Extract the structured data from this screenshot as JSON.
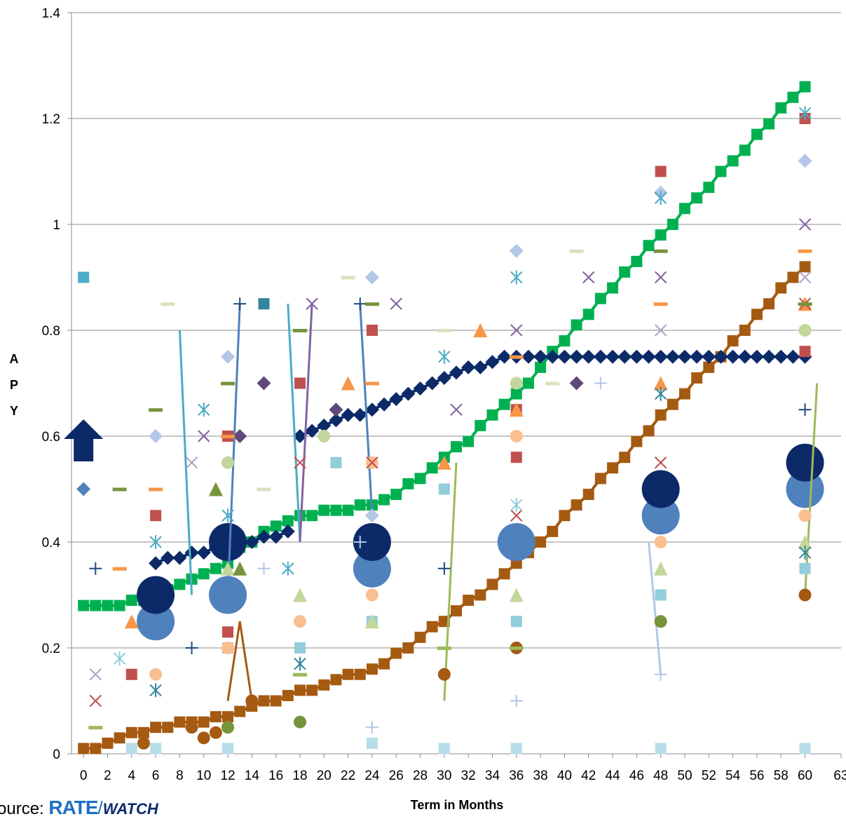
{
  "chart_data": {
    "type": "scatter",
    "title": "",
    "xlabel": "Term in Months",
    "ylabel": "APY",
    "ylabel_letters": [
      "A",
      "P",
      "Y"
    ],
    "xlim": [
      -1,
      63
    ],
    "ylim": [
      0,
      1.4
    ],
    "x_ticks": [
      "0",
      "2",
      "4",
      "6",
      "8",
      "10",
      "12",
      "14",
      "16",
      "18",
      "20",
      "22",
      "24",
      "26",
      "28",
      "30",
      "32",
      "34",
      "36",
      "38",
      "40",
      "42",
      "44",
      "46",
      "48",
      "50",
      "52",
      "54",
      "56",
      "58",
      "60",
      "63"
    ],
    "x_tick_values": [
      0,
      2,
      4,
      6,
      8,
      10,
      12,
      14,
      16,
      18,
      20,
      22,
      24,
      26,
      28,
      30,
      32,
      34,
      36,
      38,
      40,
      42,
      44,
      46,
      48,
      50,
      52,
      54,
      56,
      58,
      60,
      63
    ],
    "y_ticks": [
      "0",
      "0.2",
      "0.4",
      "0.6",
      "0.8",
      "1",
      "1.2",
      "1.4"
    ],
    "y_tick_values": [
      0,
      0.2,
      0.4,
      0.6,
      0.8,
      1.0,
      1.2,
      1.4
    ],
    "grid": "horizontal",
    "series": [
      {
        "marker": "square",
        "color": "#00b050",
        "line": true,
        "x": [
          0,
          1,
          2,
          3,
          4,
          5,
          6,
          7,
          8,
          9,
          10,
          11,
          12,
          13,
          14,
          15,
          16,
          17,
          18,
          19,
          20,
          21,
          22,
          23,
          24,
          25,
          26,
          27,
          28,
          29,
          30,
          31,
          32,
          33,
          34,
          35,
          36,
          37,
          38,
          39,
          40,
          41,
          42,
          43,
          44,
          45,
          46,
          47,
          48,
          49,
          50,
          51,
          52,
          53,
          54,
          55,
          56,
          57,
          58,
          59,
          60
        ],
        "y": [
          0.28,
          0.28,
          0.28,
          0.28,
          0.29,
          0.29,
          0.3,
          0.31,
          0.32,
          0.33,
          0.34,
          0.35,
          0.36,
          0.39,
          0.4,
          0.42,
          0.43,
          0.44,
          0.45,
          0.45,
          0.46,
          0.46,
          0.46,
          0.47,
          0.47,
          0.48,
          0.49,
          0.51,
          0.52,
          0.54,
          0.56,
          0.58,
          0.59,
          0.62,
          0.64,
          0.66,
          0.68,
          0.7,
          0.73,
          0.76,
          0.78,
          0.81,
          0.83,
          0.86,
          0.88,
          0.91,
          0.93,
          0.96,
          0.98,
          1.0,
          1.03,
          1.05,
          1.07,
          1.1,
          1.12,
          1.14,
          1.17,
          1.19,
          1.22,
          1.24,
          1.26
        ]
      },
      {
        "marker": "square",
        "color": "#a55a11",
        "line": true,
        "x": [
          0,
          1,
          2,
          3,
          4,
          5,
          6,
          7,
          8,
          9,
          10,
          11,
          12,
          13,
          14,
          15,
          16,
          17,
          18,
          19,
          20,
          21,
          22,
          23,
          24,
          25,
          26,
          27,
          28,
          29,
          30,
          31,
          32,
          33,
          34,
          35,
          36,
          37,
          38,
          39,
          40,
          41,
          42,
          43,
          44,
          45,
          46,
          47,
          48,
          49,
          50,
          51,
          52,
          53,
          54,
          55,
          56,
          57,
          58,
          59,
          60
        ],
        "y": [
          0.01,
          0.01,
          0.02,
          0.03,
          0.04,
          0.04,
          0.05,
          0.05,
          0.06,
          0.06,
          0.06,
          0.07,
          0.07,
          0.08,
          0.09,
          0.1,
          0.1,
          0.11,
          0.12,
          0.12,
          0.13,
          0.14,
          0.15,
          0.15,
          0.16,
          0.17,
          0.19,
          0.2,
          0.22,
          0.24,
          0.25,
          0.27,
          0.29,
          0.3,
          0.32,
          0.34,
          0.36,
          0.38,
          0.4,
          0.42,
          0.45,
          0.47,
          0.49,
          0.52,
          0.54,
          0.56,
          0.59,
          0.61,
          0.64,
          0.66,
          0.68,
          0.71,
          0.73,
          0.75,
          0.78,
          0.8,
          0.83,
          0.85,
          0.88,
          0.9,
          0.92
        ]
      },
      {
        "marker": "diamond",
        "color": "#0d2a68",
        "line": true,
        "x": [
          6,
          7,
          8,
          9,
          10,
          11,
          12,
          13,
          14,
          15,
          16,
          17
        ],
        "y": [
          0.36,
          0.37,
          0.37,
          0.38,
          0.38,
          0.39,
          0.39,
          0.4,
          0.4,
          0.41,
          0.41,
          0.42
        ]
      },
      {
        "marker": "diamond",
        "color": "#0d2a68",
        "line": true,
        "x": [
          18,
          19,
          20,
          21,
          22,
          23,
          24,
          25,
          26,
          27,
          28,
          29,
          30,
          31,
          32,
          33,
          34,
          35,
          36,
          37,
          38,
          39,
          40,
          41,
          42,
          43,
          44,
          45,
          46,
          47,
          48,
          49,
          50,
          51,
          52,
          53,
          54,
          55,
          56,
          57,
          58,
          59,
          60
        ],
        "y": [
          0.6,
          0.61,
          0.62,
          0.63,
          0.64,
          0.64,
          0.65,
          0.66,
          0.67,
          0.68,
          0.69,
          0.7,
          0.71,
          0.72,
          0.73,
          0.73,
          0.74,
          0.75,
          0.75,
          0.75,
          0.75,
          0.75,
          0.75,
          0.75,
          0.75,
          0.75,
          0.75,
          0.75,
          0.75,
          0.75,
          0.75,
          0.75,
          0.75,
          0.75,
          0.75,
          0.75,
          0.75,
          0.75,
          0.75,
          0.75,
          0.75,
          0.75,
          0.75
        ]
      },
      {
        "marker": "circle-large",
        "color": "#4f81bd",
        "x": [
          6,
          12,
          24,
          36,
          48,
          60
        ],
        "y": [
          0.25,
          0.3,
          0.35,
          0.4,
          0.45,
          0.5
        ]
      },
      {
        "marker": "circle-large",
        "color": "#0d2a68",
        "x": [
          6,
          12,
          24,
          48,
          60
        ],
        "y": [
          0.3,
          0.4,
          0.4,
          0.5,
          0.55
        ]
      },
      {
        "marker": "arrow-up",
        "color": "#0d2a68",
        "x": [
          0
        ],
        "y": [
          0.6
        ]
      },
      {
        "marker": "square",
        "color": "#4bacc6",
        "x": [
          0
        ],
        "y": [
          0.9
        ]
      },
      {
        "marker": "diamond",
        "color": "#4f81bd",
        "x": [
          0
        ],
        "y": [
          0.5
        ]
      },
      {
        "marker": "line-segment",
        "color": "#4bacc6",
        "line": true,
        "x": [
          8,
          9
        ],
        "y": [
          0.8,
          0.3
        ]
      },
      {
        "marker": "line-segment",
        "color": "#4bacc6",
        "line": true,
        "x": [
          17,
          18
        ],
        "y": [
          0.85,
          0.4
        ]
      },
      {
        "marker": "line-segment",
        "color": "#4f81bd",
        "line": true,
        "x": [
          12,
          13
        ],
        "y": [
          0.3,
          0.85
        ]
      },
      {
        "marker": "line-segment",
        "color": "#4f81bd",
        "line": true,
        "x": [
          23,
          24
        ],
        "y": [
          0.85,
          0.45
        ]
      },
      {
        "marker": "line-segment",
        "color": "#8064a2",
        "line": true,
        "x": [
          18,
          19
        ],
        "y": [
          0.4,
          0.85
        ]
      },
      {
        "marker": "line-segment",
        "color": "#9bbb59",
        "line": true,
        "x": [
          30,
          31
        ],
        "y": [
          0.1,
          0.55
        ]
      },
      {
        "marker": "line-segment",
        "color": "#9bbb59",
        "line": true,
        "x": [
          60,
          61
        ],
        "y": [
          0.3,
          0.7
        ]
      },
      {
        "marker": "line-segment",
        "color": "#a55a11",
        "line": true,
        "x": [
          12,
          13,
          14
        ],
        "y": [
          0.1,
          0.25,
          0.1
        ]
      },
      {
        "marker": "line-segment",
        "color": "#b4c6e7",
        "line": true,
        "x": [
          47,
          48
        ],
        "y": [
          0.4,
          0.15
        ]
      },
      {
        "marker": "square",
        "color": "#c0504d",
        "x": [
          6,
          12,
          18,
          24,
          36,
          48,
          60,
          4,
          12,
          36,
          60
        ],
        "y": [
          0.45,
          0.6,
          0.7,
          0.8,
          0.56,
          1.1,
          1.2,
          0.15,
          0.23,
          0.65,
          0.76
        ]
      },
      {
        "marker": "square",
        "color": "#92cddc",
        "x": [
          21,
          24,
          30,
          36,
          48,
          60,
          12,
          18
        ],
        "y": [
          0.55,
          0.25,
          0.5,
          0.25,
          0.3,
          0.35,
          0.2,
          0.2
        ]
      },
      {
        "marker": "square",
        "color": "#b7dde8",
        "x": [
          4,
          6,
          12,
          24,
          30,
          36,
          48,
          60
        ],
        "y": [
          0.01,
          0.01,
          0.01,
          0.02,
          0.01,
          0.01,
          0.01,
          0.01
        ]
      },
      {
        "marker": "square",
        "color": "#31859c",
        "x": [
          15
        ],
        "y": [
          0.85
        ]
      },
      {
        "marker": "triangle",
        "color": "#f79646",
        "x": [
          4,
          22,
          30,
          33,
          36,
          48,
          60
        ],
        "y": [
          0.25,
          0.7,
          0.55,
          0.8,
          0.65,
          0.7,
          0.85
        ]
      },
      {
        "marker": "triangle",
        "color": "#c4d79b",
        "x": [
          12,
          24,
          36,
          48,
          60,
          18
        ],
        "y": [
          0.35,
          0.25,
          0.3,
          0.35,
          0.4,
          0.3
        ]
      },
      {
        "marker": "triangle",
        "color": "#77933c",
        "x": [
          11,
          13
        ],
        "y": [
          0.5,
          0.35
        ]
      },
      {
        "marker": "circle",
        "color": "#fabf8f",
        "x": [
          6,
          12,
          18,
          24,
          36,
          48,
          60,
          24
        ],
        "y": [
          0.15,
          0.2,
          0.25,
          0.3,
          0.6,
          0.4,
          0.45,
          0.55
        ]
      },
      {
        "marker": "circle",
        "color": "#a55a11",
        "x": [
          5,
          9,
          10,
          11,
          14,
          30,
          36,
          60
        ],
        "y": [
          0.02,
          0.05,
          0.03,
          0.04,
          0.1,
          0.15,
          0.2,
          0.3
        ]
      },
      {
        "marker": "circle",
        "color": "#77933c",
        "x": [
          18,
          48,
          12
        ],
        "y": [
          0.06,
          0.25,
          0.05
        ]
      },
      {
        "marker": "circle",
        "color": "#c3d69b",
        "x": [
          12,
          20,
          36,
          60
        ],
        "y": [
          0.55,
          0.6,
          0.7,
          0.8
        ]
      },
      {
        "marker": "diamond",
        "color": "#b4c6e7",
        "x": [
          6,
          12,
          24,
          36,
          48,
          60,
          24
        ],
        "y": [
          0.6,
          0.75,
          0.9,
          0.95,
          1.06,
          1.12,
          0.45
        ]
      },
      {
        "marker": "diamond",
        "color": "#60497a",
        "x": [
          15,
          21,
          41,
          13
        ],
        "y": [
          0.7,
          0.65,
          0.7,
          0.6
        ]
      },
      {
        "marker": "x",
        "color": "#8064a2",
        "x": [
          10,
          19,
          26,
          31,
          36,
          42,
          48,
          60
        ],
        "y": [
          0.6,
          0.85,
          0.85,
          0.65,
          0.8,
          0.9,
          0.9,
          1.0
        ]
      },
      {
        "marker": "x",
        "color": "#c0504d",
        "x": [
          1,
          18,
          24,
          36,
          48,
          60
        ],
        "y": [
          0.1,
          0.55,
          0.55,
          0.45,
          0.55,
          0.85
        ]
      },
      {
        "marker": "x",
        "color": "#b1a0c7",
        "x": [
          1,
          9,
          48,
          60
        ],
        "y": [
          0.15,
          0.55,
          0.8,
          0.9
        ]
      },
      {
        "marker": "star",
        "color": "#4bacc6",
        "x": [
          6,
          10,
          12,
          17,
          30,
          36,
          48,
          60
        ],
        "y": [
          0.4,
          0.65,
          0.45,
          0.35,
          0.75,
          0.9,
          1.05,
          1.21
        ]
      },
      {
        "marker": "star",
        "color": "#31859c",
        "x": [
          6,
          18,
          48,
          60
        ],
        "y": [
          0.12,
          0.17,
          0.68,
          0.38
        ]
      },
      {
        "marker": "star",
        "color": "#93cddd",
        "x": [
          3,
          36
        ],
        "y": [
          0.18,
          0.47
        ]
      },
      {
        "marker": "plus",
        "color": "#1f497d",
        "x": [
          1,
          9,
          13,
          23,
          30,
          60
        ],
        "y": [
          0.35,
          0.2,
          0.85,
          0.85,
          0.35,
          0.65
        ]
      },
      {
        "marker": "plus",
        "color": "#b4c6e7",
        "x": [
          15,
          23,
          24,
          36,
          43,
          48
        ],
        "y": [
          0.35,
          0.4,
          0.05,
          0.1,
          0.7,
          0.15
        ]
      },
      {
        "marker": "dash",
        "color": "#f79646",
        "x": [
          3,
          6,
          12,
          24,
          36,
          48,
          60
        ],
        "y": [
          0.35,
          0.5,
          0.6,
          0.7,
          0.75,
          0.85,
          0.95
        ]
      },
      {
        "marker": "dash",
        "color": "#77933c",
        "x": [
          3,
          6,
          12,
          18,
          24,
          48,
          60
        ],
        "y": [
          0.5,
          0.65,
          0.7,
          0.8,
          0.85,
          0.95,
          0.85
        ]
      },
      {
        "marker": "dash",
        "color": "#d7e4bc",
        "x": [
          7,
          15,
          22,
          30,
          39,
          41
        ],
        "y": [
          0.85,
          0.5,
          0.9,
          0.8,
          0.7,
          0.95
        ]
      },
      {
        "marker": "dash",
        "color": "#9bbb59",
        "x": [
          1,
          30,
          36,
          18
        ],
        "y": [
          0.05,
          0.2,
          0.2,
          0.15
        ]
      }
    ]
  },
  "source": {
    "prefix": "ource:",
    "logo_rate": "RATE",
    "logo_watch": "WATCH"
  }
}
